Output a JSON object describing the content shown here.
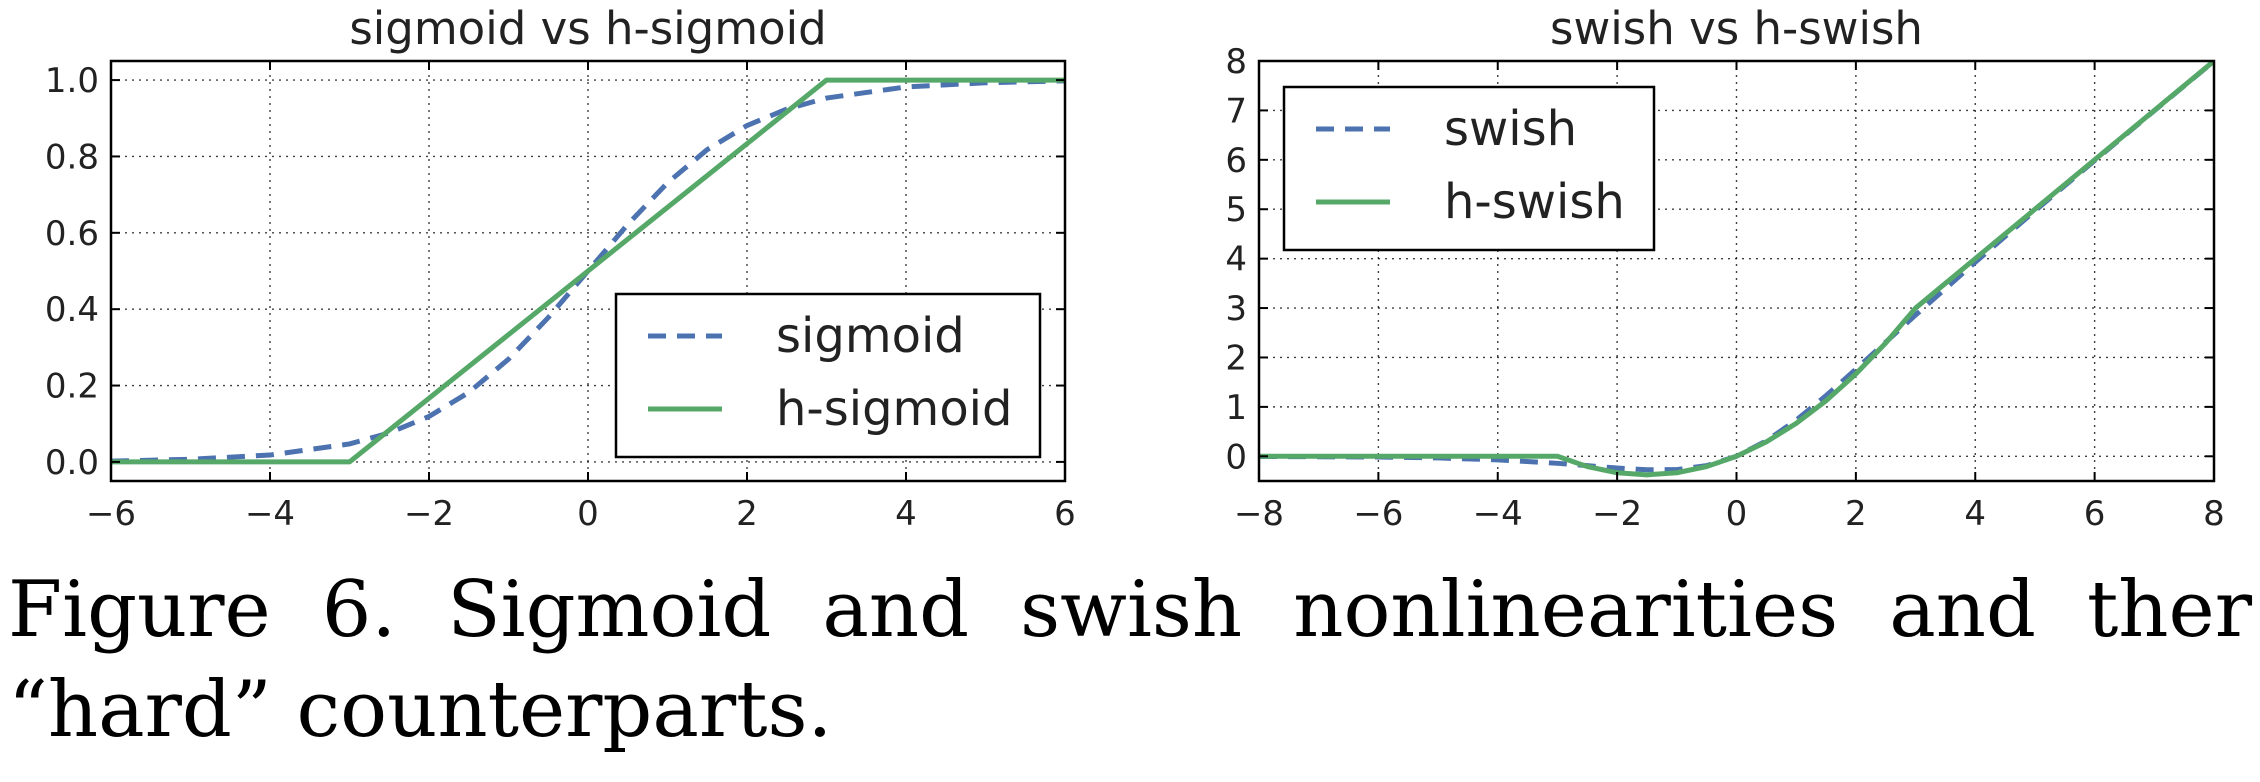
{
  "chart_data": [
    {
      "type": "line",
      "title": "sigmoid vs h-sigmoid",
      "xlabel": "",
      "ylabel": "",
      "xlim": [
        -6,
        6
      ],
      "ylim": [
        -0.05,
        1.05
      ],
      "xticks": [
        -6,
        -4,
        -2,
        0,
        2,
        4,
        6
      ],
      "xtick_labels": [
        "−6",
        "−4",
        "−2",
        "0",
        "2",
        "4",
        "6"
      ],
      "yticks": [
        0.0,
        0.2,
        0.4,
        0.6,
        0.8,
        1.0
      ],
      "ytick_labels": [
        "0.0",
        "0.2",
        "0.4",
        "0.6",
        "0.8",
        "1.0"
      ],
      "grid": true,
      "legend_position": "lower-right",
      "series": [
        {
          "name": "sigmoid",
          "style": "dashed",
          "color": "#4c72b0",
          "x": [
            -6,
            -5,
            -4,
            -3,
            -2.5,
            -2,
            -1.5,
            -1,
            -0.5,
            0,
            0.5,
            1,
            1.5,
            2,
            2.5,
            3,
            4,
            5,
            6
          ],
          "y": [
            0.002,
            0.007,
            0.018,
            0.047,
            0.076,
            0.119,
            0.182,
            0.269,
            0.378,
            0.5,
            0.622,
            0.731,
            0.818,
            0.881,
            0.924,
            0.953,
            0.982,
            0.993,
            0.998
          ]
        },
        {
          "name": "h-sigmoid",
          "style": "solid",
          "color": "#55a868",
          "x": [
            -6,
            -3,
            3,
            6
          ],
          "y": [
            0,
            0,
            1,
            1
          ]
        }
      ]
    },
    {
      "type": "line",
      "title": "swish vs h-swish",
      "xlabel": "",
      "ylabel": "",
      "xlim": [
        -8,
        8
      ],
      "ylim": [
        -0.5,
        8
      ],
      "xticks": [
        -8,
        -6,
        -4,
        -2,
        0,
        2,
        4,
        6,
        8
      ],
      "xtick_labels": [
        "−8",
        "−6",
        "−4",
        "−2",
        "0",
        "2",
        "4",
        "6",
        "8"
      ],
      "yticks": [
        0,
        1,
        2,
        3,
        4,
        5,
        6,
        7,
        8
      ],
      "ytick_labels": [
        "0",
        "1",
        "2",
        "3",
        "4",
        "5",
        "6",
        "7",
        "8"
      ],
      "grid": true,
      "legend_position": "upper-left",
      "series": [
        {
          "name": "swish",
          "style": "dashed",
          "color": "#4c72b0",
          "x": [
            -8,
            -6,
            -5,
            -4,
            -3,
            -2.5,
            -2,
            -1.5,
            -1,
            -0.5,
            0,
            0.5,
            1,
            1.5,
            2,
            3,
            4,
            5,
            6,
            7,
            8
          ],
          "y": [
            -0.003,
            -0.015,
            -0.033,
            -0.072,
            -0.142,
            -0.189,
            -0.238,
            -0.273,
            -0.269,
            -0.189,
            0,
            0.311,
            0.731,
            1.227,
            1.762,
            2.858,
            3.928,
            4.967,
            5.985,
            6.994,
            7.997
          ]
        },
        {
          "name": "h-swish",
          "style": "solid",
          "color": "#55a868",
          "x": [
            -8,
            -3,
            -2.5,
            -2,
            -1.5,
            -1,
            -0.5,
            0,
            0.5,
            1,
            1.5,
            2,
            2.5,
            3,
            8
          ],
          "y": [
            0,
            0,
            -0.208,
            -0.333,
            -0.375,
            -0.333,
            -0.208,
            0,
            0.292,
            0.667,
            1.125,
            1.667,
            2.292,
            3,
            8
          ]
        }
      ]
    }
  ],
  "caption": "Figure 6. Sigmoid and swish nonlinearities and ther “hard” counterparts."
}
